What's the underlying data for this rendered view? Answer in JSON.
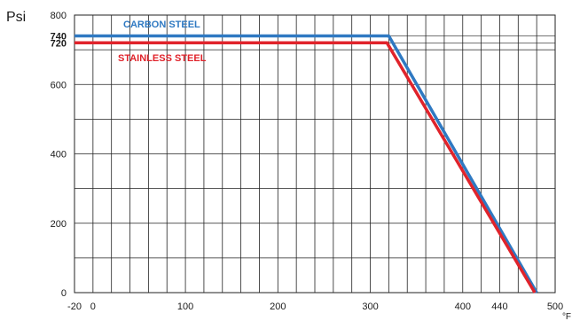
{
  "chart_data": {
    "type": "line",
    "ylabel": "Psi",
    "xlabel": "°F",
    "xlim": [
      -20,
      500
    ],
    "ylim": [
      0,
      800
    ],
    "x_ticks": [
      -20,
      0,
      100,
      200,
      300,
      400,
      440,
      500
    ],
    "x_tick_labels": [
      "-20",
      "0",
      "100",
      "200",
      "300",
      "400",
      "440",
      "500"
    ],
    "y_ticks": [
      0,
      200,
      400,
      600,
      720,
      740,
      800
    ],
    "y_tick_labels": [
      "0",
      "200",
      "400",
      "600",
      "720",
      "740",
      "800"
    ],
    "y_bold_ticks": [
      720,
      740
    ],
    "grid": true,
    "series": [
      {
        "name": "CARBON STEEL",
        "color": "#2f79c2",
        "points": [
          [
            -20,
            740
          ],
          [
            320,
            740
          ],
          [
            480,
            0
          ]
        ]
      },
      {
        "name": "STAINLESS STEEL",
        "color": "#e0232b",
        "points": [
          [
            -20,
            720
          ],
          [
            318,
            720
          ],
          [
            478,
            0
          ]
        ]
      }
    ]
  }
}
